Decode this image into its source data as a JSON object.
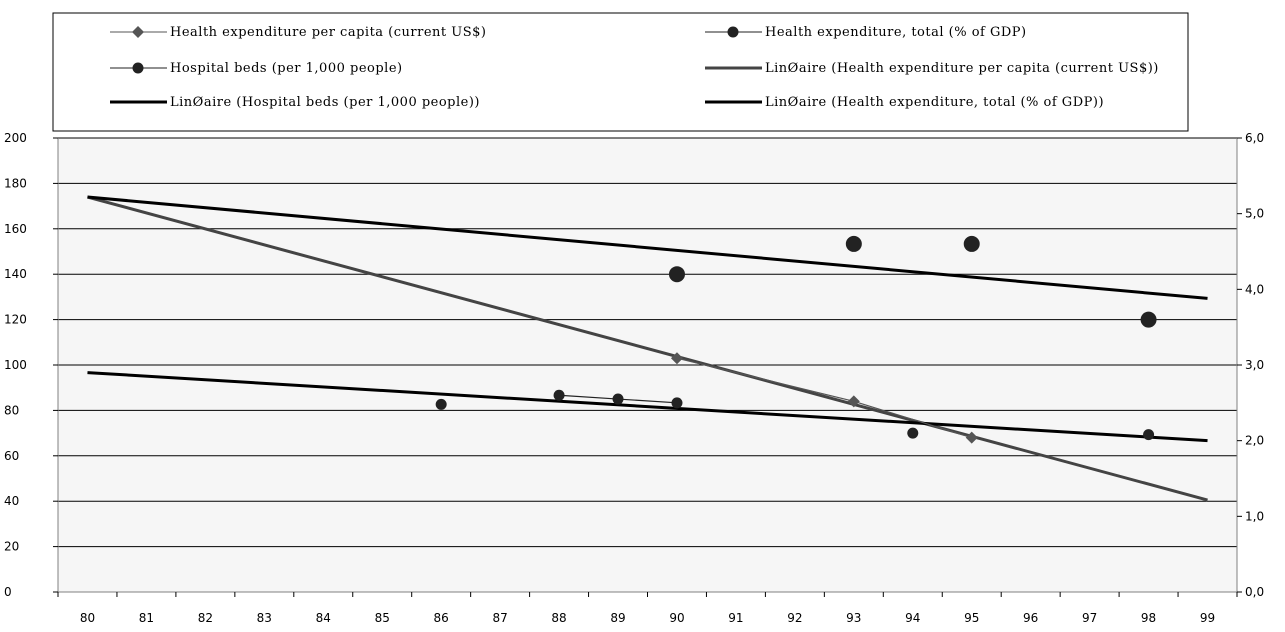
{
  "chart_data": {
    "type": "line",
    "x_categories": [
      "80",
      "81",
      "82",
      "83",
      "84",
      "85",
      "86",
      "87",
      "88",
      "89",
      "90",
      "91",
      "92",
      "93",
      "94",
      "95",
      "96",
      "97",
      "98",
      "99"
    ],
    "y_left": {
      "min": 0,
      "max": 200,
      "step": 20,
      "ticks": [
        "0",
        "20",
        "40",
        "60",
        "80",
        "100",
        "120",
        "140",
        "160",
        "180",
        "200"
      ]
    },
    "y_right": {
      "min": 0,
      "max": 6,
      "step": 1,
      "ticks": [
        "0,0",
        "1,0",
        "2,0",
        "3,0",
        "4,0",
        "5,0",
        "6,0"
      ]
    },
    "grid": "horizontal",
    "legend_position": "top",
    "series": [
      {
        "name": "Health expenditure per capita (current US$)",
        "axis": "left",
        "kind": "line-markers",
        "marker": "diamond",
        "color": "#555555",
        "points": [
          [
            "90",
            103
          ],
          [
            "93",
            84
          ],
          [
            "95",
            68
          ]
        ]
      },
      {
        "name": "Health expenditure, total (% of GDP)",
        "axis": "right",
        "kind": "markers",
        "marker": "circle-large",
        "color": "#222222",
        "points": [
          [
            "90",
            4.2
          ],
          [
            "93",
            4.6
          ],
          [
            "95",
            4.6
          ],
          [
            "98",
            3.6
          ]
        ]
      },
      {
        "name": "Hospital beds (per 1,000 people)",
        "axis": "right",
        "kind": "line-markers",
        "marker": "circle-small",
        "color": "#222222",
        "points": [
          [
            "86",
            2.48
          ],
          [
            "88",
            2.6
          ],
          [
            "89",
            2.55
          ],
          [
            "90",
            2.5
          ],
          [
            "94",
            2.1
          ],
          [
            "98",
            2.08
          ]
        ],
        "connected_segment": [
          2,
          4
        ]
      },
      {
        "name": "Linéaire (Health expenditure per capita (current US$))",
        "axis": "left",
        "kind": "trend",
        "color": "#444444",
        "width": 3,
        "points": [
          [
            "80",
            174
          ],
          [
            "99",
            40.5
          ]
        ]
      },
      {
        "name": "Linéaire (Hospital beds (per 1,000 people))",
        "axis": "right",
        "kind": "trend",
        "color": "#000000",
        "width": 3,
        "points": [
          [
            "80",
            2.9
          ],
          [
            "99",
            2.0
          ]
        ]
      },
      {
        "name": "Linéaire (Health expenditure, total (% of GDP))",
        "axis": "right",
        "kind": "trend",
        "color": "#000000",
        "width": 3,
        "points": [
          [
            "80",
            5.22
          ],
          [
            "99",
            3.88
          ]
        ]
      }
    ]
  },
  "legend": {
    "items": [
      {
        "label": "Health expenditure per capita (current US$)",
        "marker": "diamond",
        "color": "#555555",
        "width": 1
      },
      {
        "label": "Health expenditure, total (% of GDP)",
        "marker": "circle-small",
        "color": "#222222",
        "width": 1
      },
      {
        "label": "Hospital beds (per 1,000 people)",
        "marker": "circle-small",
        "color": "#222222",
        "width": 1
      },
      {
        "label": "LinØaire (Health expenditure per capita (current US$))",
        "marker": "none",
        "color": "#444444",
        "width": 3
      },
      {
        "label": "LinØaire (Hospital beds (per 1,000 people))",
        "marker": "none",
        "color": "#000000",
        "width": 3
      },
      {
        "label": "LinØaire (Health expenditure, total (% of GDP))",
        "marker": "none",
        "color": "#000000",
        "width": 3
      }
    ]
  },
  "colors": {
    "plot_bg": "#f6f6f6",
    "grid": "#000000",
    "frame": "#808080"
  }
}
